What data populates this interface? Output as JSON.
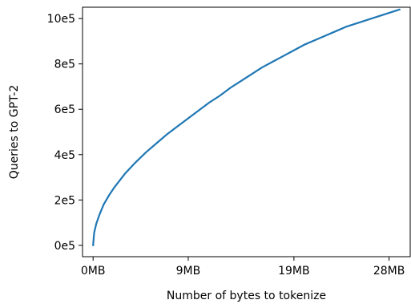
{
  "chart_data": {
    "type": "line",
    "title": "",
    "xlabel": "Number of bytes to tokenize",
    "ylabel": "Queries to GPT-2",
    "xlim": [
      -1.0,
      30.0
    ],
    "ylim": [
      -0.5,
      10.5
    ],
    "x_unit": "MB",
    "xticks": [
      {
        "value": 0,
        "label": "0MB"
      },
      {
        "value": 9,
        "label": "9MB"
      },
      {
        "value": 19,
        "label": "19MB"
      },
      {
        "value": 28,
        "label": "28MB"
      }
    ],
    "yticks": [
      {
        "value": 0,
        "label": "0e5"
      },
      {
        "value": 2,
        "label": "2e5"
      },
      {
        "value": 4,
        "label": "4e5"
      },
      {
        "value": 6,
        "label": "6e5"
      },
      {
        "value": 8,
        "label": "8e5"
      },
      {
        "value": 10,
        "label": "10e5"
      }
    ],
    "grid": false,
    "legend": "none",
    "series": [
      {
        "color": "#1f77b4",
        "x": [
          0.0,
          0.1,
          0.3,
          0.6,
          1.0,
          1.5,
          2.0,
          3.0,
          4.0,
          5.0,
          6.0,
          7.0,
          8.0,
          9.0,
          10.0,
          11.0,
          12.0,
          13.0,
          14.0,
          15.0,
          16.0,
          17.0,
          18.0,
          19.0,
          20.0,
          21.0,
          22.0,
          23.0,
          24.0,
          25.0,
          26.0,
          27.0,
          28.0,
          29.0
        ],
        "y": [
          0.0,
          0.55,
          0.95,
          1.35,
          1.8,
          2.2,
          2.55,
          3.15,
          3.65,
          4.1,
          4.5,
          4.9,
          5.25,
          5.6,
          5.95,
          6.3,
          6.6,
          6.95,
          7.25,
          7.55,
          7.85,
          8.1,
          8.35,
          8.6,
          8.85,
          9.05,
          9.25,
          9.45,
          9.65,
          9.8,
          9.95,
          10.1,
          10.25,
          10.4
        ]
      }
    ]
  }
}
